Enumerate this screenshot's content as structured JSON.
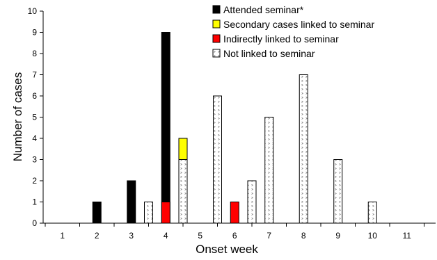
{
  "chart_data": {
    "type": "bar",
    "title": "",
    "xlabel": "Onset week",
    "ylabel": "Number of cases",
    "ylim": [
      0,
      10
    ],
    "yticks": [
      "0",
      "1",
      "2",
      "3",
      "4",
      "5",
      "6",
      "7",
      "8",
      "9",
      "10"
    ],
    "categories": [
      "1",
      "2",
      "3",
      "4",
      "5",
      "6",
      "7",
      "8",
      "9",
      "10",
      "11"
    ],
    "grid": false,
    "legend_position": "top-right",
    "series": [
      {
        "name": "Attended seminar*",
        "color": "#000000",
        "pattern": "solid",
        "bars": [
          {
            "x": 1.5,
            "value": 1
          },
          {
            "x": 2.5,
            "value": 2
          },
          {
            "x": 3.5,
            "value": 9
          }
        ]
      },
      {
        "name": "Secondary cases linked to seminar",
        "color": "#ffff00",
        "pattern": "solid",
        "bars": [
          {
            "x": 4.0,
            "value": 4
          }
        ]
      },
      {
        "name": "Indirectly linked to seminar",
        "color": "#ff0000",
        "pattern": "solid",
        "bars": [
          {
            "x": 3.5,
            "value": 1
          },
          {
            "x": 5.5,
            "value": 1
          }
        ]
      },
      {
        "name": "Not linked to seminar",
        "color": "#ffffff",
        "pattern": "dotted",
        "bars": [
          {
            "x": 3.0,
            "value": 1
          },
          {
            "x": 4.0,
            "value": 3
          },
          {
            "x": 5.0,
            "value": 6
          },
          {
            "x": 6.0,
            "value": 2
          },
          {
            "x": 6.5,
            "value": 5
          },
          {
            "x": 7.5,
            "value": 7
          },
          {
            "x": 8.5,
            "value": 3
          },
          {
            "x": 9.5,
            "value": 1
          }
        ]
      }
    ]
  }
}
